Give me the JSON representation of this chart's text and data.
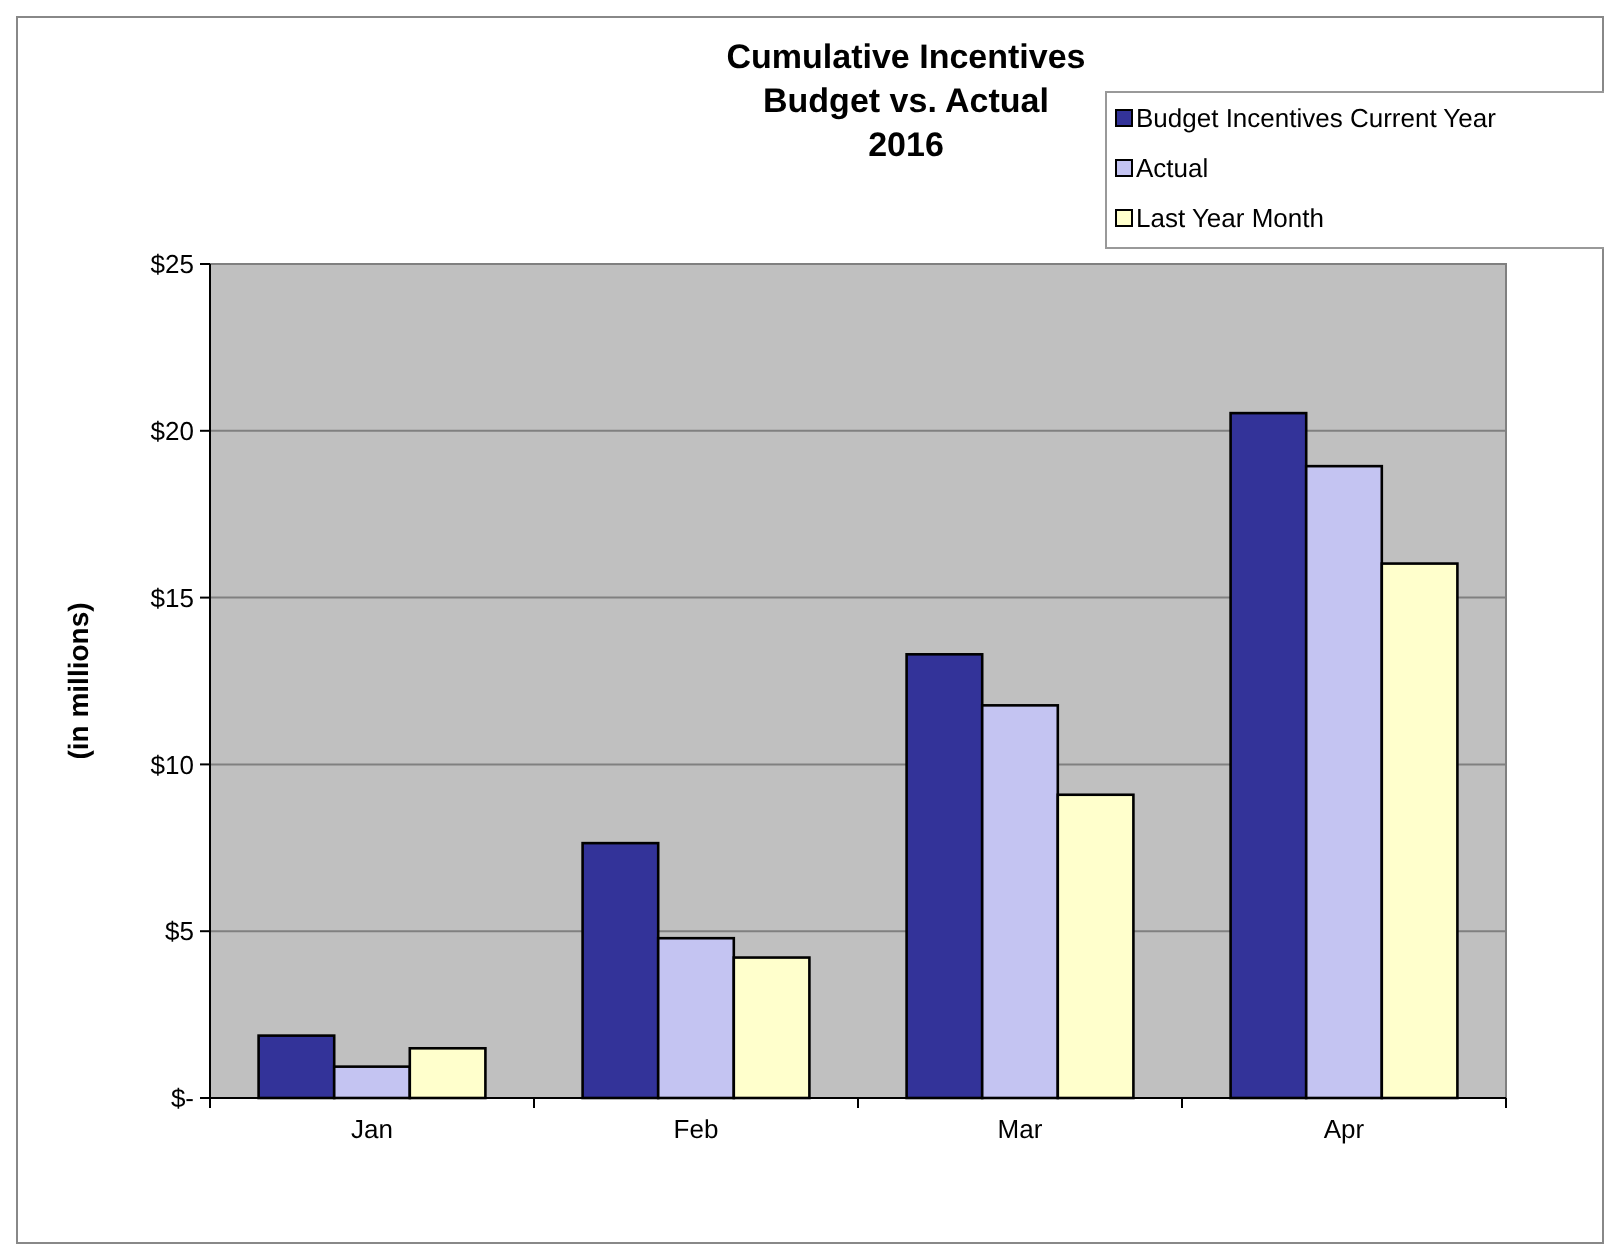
{
  "chart_data": {
    "type": "bar",
    "title": "Cumulative Incentives\nBudget vs. Actual\n2016",
    "ylabel": "(in millions)",
    "categories": [
      "Jan",
      "Feb",
      "Mar",
      "Apr"
    ],
    "series": [
      {
        "name": "Budget Incentives Current Year",
        "color": "#333399",
        "values": [
          1.87,
          7.64,
          13.3,
          20.53
        ]
      },
      {
        "name": "Actual",
        "color": "#c4c4f2",
        "values": [
          0.94,
          4.79,
          11.77,
          18.94
        ]
      },
      {
        "name": "Last Year Month",
        "color": "#ffffcc",
        "values": [
          1.49,
          4.21,
          9.09,
          16.02
        ]
      }
    ],
    "ylim": [
      0,
      25
    ],
    "yticks": [
      {
        "value": 0,
        "label": "$-"
      },
      {
        "value": 5,
        "label": "$5"
      },
      {
        "value": 10,
        "label": "$10"
      },
      {
        "value": 15,
        "label": "$15"
      },
      {
        "value": 20,
        "label": "$20"
      },
      {
        "value": 25,
        "label": "$25"
      }
    ],
    "grid": "y",
    "legend": "top right"
  }
}
